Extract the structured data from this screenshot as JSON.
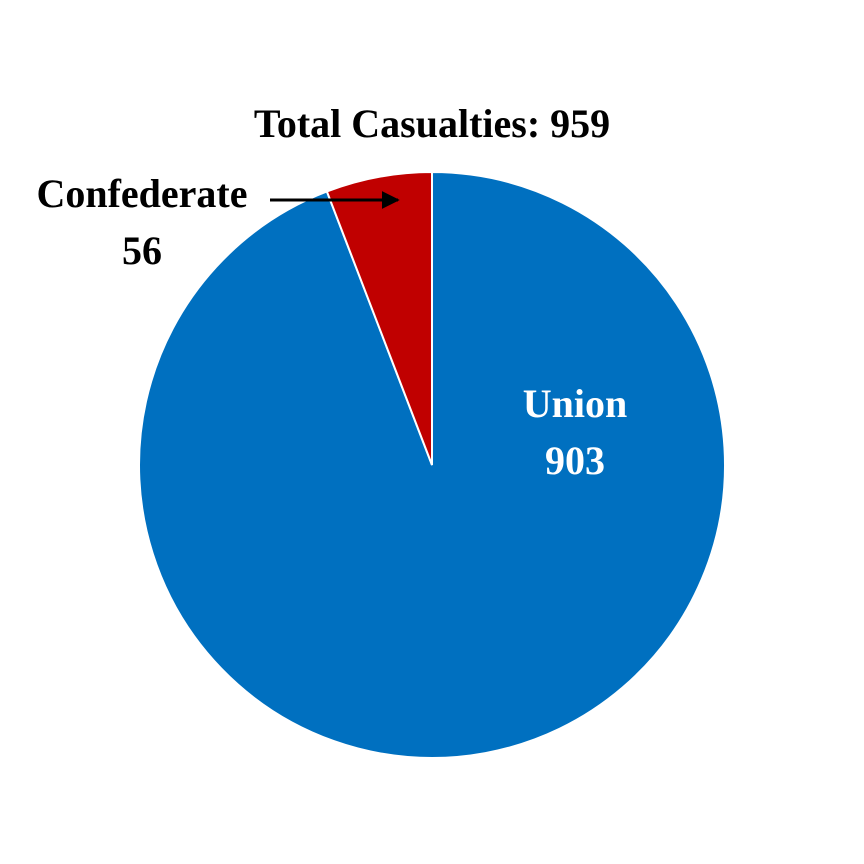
{
  "chart_data": {
    "type": "pie",
    "title": "Total Casualties: 959",
    "categories": [
      "Union",
      "Confederate"
    ],
    "values": [
      903,
      56
    ],
    "colors": [
      "#0070c0",
      "#c00000"
    ]
  }
}
